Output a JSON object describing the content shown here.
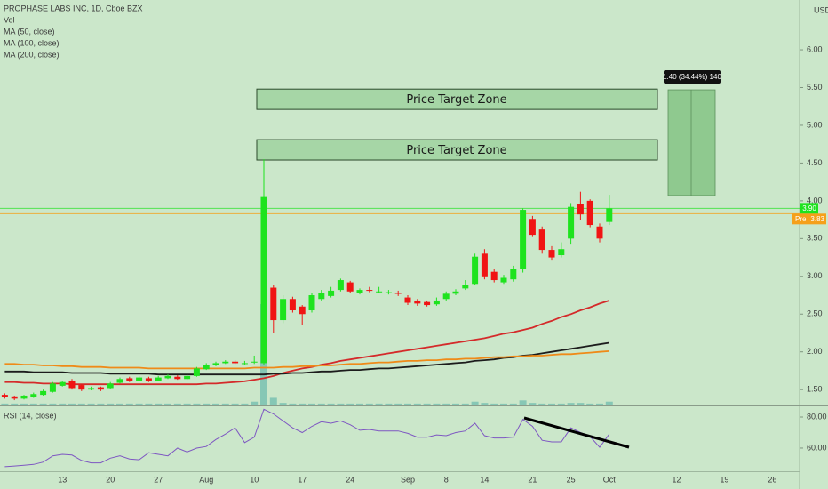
{
  "chart_data": [
    {
      "type": "candlestick",
      "title": "PROPHASE LABS INC, 1D, Cboe BZX",
      "y_axis_label": "USD",
      "categories": [
        null,
        null,
        null,
        null,
        null,
        null,
        "13",
        null,
        null,
        null,
        null,
        "20",
        null,
        null,
        null,
        null,
        "27",
        null,
        null,
        null,
        null,
        "Aug",
        null,
        null,
        null,
        null,
        "10",
        null,
        null,
        null,
        null,
        "17",
        null,
        null,
        null,
        null,
        "24",
        null,
        null,
        null,
        null,
        null,
        "Sep",
        null,
        null,
        null,
        "8",
        null,
        null,
        null,
        "14",
        null,
        null,
        null,
        null,
        "21",
        null,
        null,
        null,
        "25",
        null,
        null,
        null,
        "Oct",
        null,
        null,
        null,
        null,
        null,
        null,
        "12",
        null,
        null,
        null,
        null,
        "19",
        null,
        null,
        null,
        null,
        "26",
        null
      ],
      "open": [
        1.43,
        1.41,
        1.38,
        1.4,
        1.43,
        1.47,
        1.55,
        1.62,
        1.56,
        1.5,
        1.53,
        1.52,
        1.59,
        1.65,
        1.62,
        1.65,
        1.62,
        1.65,
        1.67,
        1.64,
        1.68,
        1.77,
        1.82,
        1.85,
        1.87,
        1.85,
        1.86,
        1.85,
        2.85,
        2.42,
        2.7,
        2.6,
        2.55,
        2.7,
        2.74,
        2.82,
        2.92,
        2.78,
        2.82,
        2.8,
        2.78,
        2.78,
        2.72,
        2.68,
        2.66,
        2.63,
        2.7,
        2.77,
        2.84,
        2.9,
        3.3,
        3.06,
        2.92,
        2.96,
        3.1,
        3.76,
        3.62,
        3.35,
        3.28,
        3.5,
        3.96,
        4.0,
        3.66,
        3.72,
        null,
        null,
        null,
        null,
        null,
        null,
        null,
        null,
        null,
        null,
        null,
        null,
        null,
        null,
        null,
        null,
        null,
        null
      ],
      "high": [
        1.45,
        1.42,
        1.43,
        1.46,
        1.5,
        1.6,
        1.62,
        1.64,
        1.57,
        1.54,
        1.54,
        1.6,
        1.66,
        1.67,
        1.68,
        1.67,
        1.68,
        1.7,
        1.69,
        1.7,
        1.8,
        1.85,
        1.87,
        1.89,
        1.89,
        1.88,
        1.95,
        4.55,
        2.88,
        2.75,
        2.73,
        2.62,
        2.78,
        2.82,
        2.86,
        2.97,
        2.94,
        2.84,
        2.86,
        2.86,
        2.82,
        2.81,
        2.75,
        2.7,
        2.68,
        2.72,
        2.8,
        2.83,
        2.95,
        3.3,
        3.36,
        3.1,
        3.02,
        3.14,
        3.9,
        3.8,
        3.66,
        3.4,
        3.45,
        3.97,
        4.12,
        4.02,
        3.7,
        4.08,
        null,
        null,
        null,
        null,
        null,
        null,
        null,
        null,
        null,
        null,
        null,
        null,
        null,
        null,
        null,
        null,
        null,
        null
      ],
      "low": [
        1.38,
        1.36,
        1.37,
        1.39,
        1.42,
        1.46,
        1.54,
        1.5,
        1.48,
        1.49,
        1.48,
        1.51,
        1.58,
        1.6,
        1.61,
        1.6,
        1.61,
        1.64,
        1.63,
        1.63,
        1.67,
        1.76,
        1.81,
        1.84,
        1.84,
        1.83,
        1.84,
        1.82,
        2.25,
        2.38,
        2.52,
        2.35,
        2.52,
        2.68,
        2.72,
        2.8,
        2.78,
        2.76,
        2.79,
        2.78,
        2.76,
        2.74,
        2.62,
        2.61,
        2.6,
        2.61,
        2.68,
        2.75,
        2.82,
        2.88,
        2.96,
        2.92,
        2.9,
        2.93,
        3.05,
        3.52,
        3.3,
        3.22,
        3.25,
        3.42,
        3.75,
        3.65,
        3.45,
        3.68,
        null,
        null,
        null,
        null,
        null,
        null,
        null,
        null,
        null,
        null,
        null,
        null,
        null,
        null,
        null,
        null,
        null,
        null
      ],
      "close": [
        1.4,
        1.38,
        1.42,
        1.44,
        1.48,
        1.58,
        1.6,
        1.52,
        1.5,
        1.52,
        1.5,
        1.58,
        1.64,
        1.62,
        1.66,
        1.62,
        1.66,
        1.68,
        1.64,
        1.68,
        1.78,
        1.82,
        1.85,
        1.87,
        1.85,
        1.85,
        1.87,
        4.05,
        2.42,
        2.7,
        2.55,
        2.5,
        2.75,
        2.78,
        2.81,
        2.95,
        2.8,
        2.82,
        2.81,
        2.8,
        2.79,
        2.77,
        2.65,
        2.64,
        2.62,
        2.68,
        2.77,
        2.8,
        2.88,
        3.26,
        3.0,
        2.95,
        2.98,
        3.1,
        3.88,
        3.55,
        3.35,
        3.25,
        3.36,
        3.92,
        3.82,
        3.68,
        3.5,
        3.9,
        null,
        null,
        null,
        null,
        null,
        null,
        null,
        null,
        null,
        null,
        null,
        null,
        null,
        null,
        null,
        null,
        null,
        null
      ],
      "up_color": "#1ee31e",
      "down_color": "#f01414",
      "volume": {
        "name": "Vol",
        "color": "#6fbcae",
        "values": [
          0.15,
          0.15,
          0.15,
          0.15,
          0.15,
          0.15,
          0.15,
          0.15,
          0.15,
          0.15,
          0.15,
          0.15,
          0.15,
          0.15,
          0.15,
          0.15,
          0.15,
          0.15,
          0.15,
          0.15,
          0.15,
          0.15,
          0.15,
          0.15,
          0.15,
          0.15,
          0.3,
          8.0,
          0.6,
          0.2,
          0.15,
          0.15,
          0.15,
          0.15,
          0.15,
          0.15,
          0.15,
          0.15,
          0.15,
          0.15,
          0.15,
          0.15,
          0.15,
          0.15,
          0.15,
          0.15,
          0.15,
          0.15,
          0.15,
          0.3,
          0.2,
          0.15,
          0.15,
          0.15,
          0.4,
          0.2,
          0.15,
          0.15,
          0.15,
          0.2,
          0.2,
          0.15,
          0.15,
          0.3,
          null,
          null,
          null,
          null,
          null,
          null,
          null,
          null,
          null,
          null,
          null,
          null,
          null,
          null,
          null,
          null,
          null,
          null
        ]
      },
      "series": [
        {
          "name": "MA (50, close)",
          "color": "#d42a2a",
          "values": [
            1.6,
            1.6,
            1.59,
            1.59,
            1.58,
            1.58,
            1.58,
            1.57,
            1.57,
            1.57,
            1.57,
            1.57,
            1.57,
            1.57,
            1.57,
            1.57,
            1.57,
            1.57,
            1.57,
            1.57,
            1.57,
            1.58,
            1.58,
            1.59,
            1.6,
            1.61,
            1.63,
            1.65,
            1.68,
            1.72,
            1.75,
            1.78,
            1.8,
            1.83,
            1.85,
            1.88,
            1.9,
            1.92,
            1.94,
            1.96,
            1.98,
            2.0,
            2.02,
            2.04,
            2.06,
            2.08,
            2.1,
            2.12,
            2.14,
            2.16,
            2.18,
            2.21,
            2.24,
            2.26,
            2.29,
            2.32,
            2.37,
            2.41,
            2.46,
            2.5,
            2.55,
            2.59,
            2.64,
            2.68,
            null,
            null,
            null,
            null,
            null,
            null,
            null,
            null,
            null,
            null,
            null,
            null,
            null,
            null,
            null,
            null,
            null,
            null
          ]
        },
        {
          "name": "MA (100, close)",
          "color": "#1c1c1c",
          "values": [
            1.74,
            1.74,
            1.74,
            1.73,
            1.73,
            1.73,
            1.73,
            1.72,
            1.72,
            1.72,
            1.72,
            1.71,
            1.71,
            1.71,
            1.71,
            1.71,
            1.7,
            1.7,
            1.7,
            1.7,
            1.7,
            1.7,
            1.7,
            1.7,
            1.7,
            1.7,
            1.7,
            1.7,
            1.71,
            1.71,
            1.72,
            1.72,
            1.73,
            1.74,
            1.74,
            1.75,
            1.76,
            1.76,
            1.77,
            1.78,
            1.78,
            1.79,
            1.8,
            1.81,
            1.82,
            1.83,
            1.84,
            1.85,
            1.86,
            1.88,
            1.89,
            1.9,
            1.92,
            1.93,
            1.95,
            1.96,
            1.98,
            2.0,
            2.02,
            2.04,
            2.06,
            2.08,
            2.1,
            2.12,
            null,
            null,
            null,
            null,
            null,
            null,
            null,
            null,
            null,
            null,
            null,
            null,
            null,
            null,
            null,
            null,
            null,
            null
          ]
        },
        {
          "name": "MA (200, close)",
          "color": "#ef8a18",
          "values": [
            1.84,
            1.84,
            1.83,
            1.83,
            1.82,
            1.82,
            1.81,
            1.81,
            1.8,
            1.8,
            1.8,
            1.79,
            1.79,
            1.79,
            1.79,
            1.78,
            1.78,
            1.78,
            1.78,
            1.78,
            1.78,
            1.78,
            1.78,
            1.78,
            1.78,
            1.78,
            1.79,
            1.79,
            1.79,
            1.8,
            1.8,
            1.81,
            1.81,
            1.82,
            1.82,
            1.83,
            1.84,
            1.84,
            1.85,
            1.86,
            1.86,
            1.87,
            1.88,
            1.88,
            1.89,
            1.89,
            1.9,
            1.9,
            1.91,
            1.91,
            1.92,
            1.93,
            1.93,
            1.94,
            1.94,
            1.95,
            1.95,
            1.96,
            1.97,
            1.97,
            1.98,
            1.99,
            2.0,
            2.01,
            null,
            null,
            null,
            null,
            null,
            null,
            null,
            null,
            null,
            null,
            null,
            null,
            null,
            null,
            null,
            null,
            null,
            null
          ]
        }
      ],
      "ylim": [
        1.29,
        6.66
      ],
      "yticks": [
        {
          "value": 6,
          "label": "6.00"
        },
        {
          "value": 5.5,
          "label": "5.50"
        },
        {
          "value": 5,
          "label": "5.00"
        },
        {
          "value": 4.5,
          "label": "4.50"
        },
        {
          "value": 4,
          "label": "4.00"
        },
        {
          "value": 3.5,
          "label": "3.50"
        },
        {
          "value": 3,
          "label": "3.00"
        },
        {
          "value": 2.5,
          "label": "2.50"
        },
        {
          "value": 2,
          "label": "2.00"
        },
        {
          "value": 1.5,
          "label": "1.50"
        }
      ],
      "last_price": {
        "value": 3.9,
        "label": "3.90",
        "color": "#1ee31e"
      },
      "premarket": {
        "name": "Pre",
        "value": 3.83,
        "label": "3.83",
        "color": "#f5a01a"
      },
      "zones": [
        {
          "label": "Price Target Zone",
          "top": 5.48,
          "bottom": 5.21
        },
        {
          "label": "Price Target Zone",
          "top": 4.81,
          "bottom": 4.54
        }
      ],
      "position": {
        "entry": 4.07,
        "target": 5.47,
        "label": "1.40 (34.44%) 140"
      }
    },
    {
      "type": "line",
      "title": "RSI (14, close)",
      "color": "#7e57c2",
      "values": [
        48.0,
        48.5,
        49.0,
        49.5,
        51.0,
        55.0,
        56.0,
        55.5,
        52.0,
        50.5,
        50.5,
        53.5,
        55.0,
        53.0,
        52.5,
        57.0,
        56.0,
        55.0,
        60.0,
        57.5,
        60.0,
        61.0,
        65.5,
        69.0,
        73.0,
        63.5,
        67.0,
        85.0,
        82.0,
        77.5,
        73.0,
        70.0,
        74.0,
        77.0,
        76.0,
        77.5,
        75.0,
        71.5,
        72.0,
        71.0,
        71.0,
        71.0,
        69.5,
        67.0,
        67.0,
        68.5,
        68.0,
        70.0,
        71.0,
        76.0,
        68.0,
        66.5,
        66.5,
        67.0,
        78.5,
        74.0,
        65.0,
        64.0,
        64.0,
        73.0,
        70.0,
        67.5,
        60.5,
        69.0,
        null,
        null,
        null,
        null,
        null,
        null,
        null,
        null,
        null,
        null,
        null,
        null,
        null,
        null,
        null,
        null,
        null,
        null
      ],
      "ylim": [
        45.1,
        86.3
      ],
      "yticks": [
        {
          "value": 80,
          "label": "80.00"
        },
        {
          "value": 60,
          "label": "60.00"
        }
      ]
    }
  ]
}
